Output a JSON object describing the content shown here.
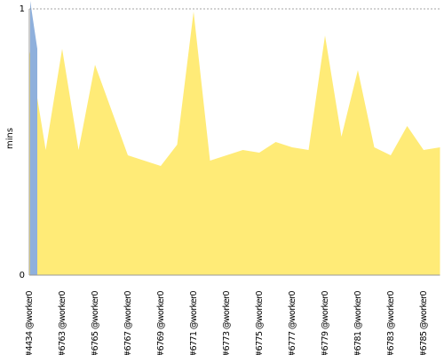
{
  "chart_data": {
    "type": "area",
    "y_label": "mins",
    "categories": [
      "#4434 @worker0",
      null,
      "#6763 @worker0",
      null,
      "#6765 @worker0",
      null,
      "#6767 @worker0",
      null,
      "#6769 @worker0",
      null,
      "#6771 @worker0",
      null,
      "#6773 @worker0",
      null,
      "#6775 @worker0",
      null,
      "#6777 @worker0",
      null,
      "#6779 @worker0",
      null,
      "#6781 @worker0",
      null,
      "#6783 @worker0",
      null,
      "#6785 @worker0",
      null
    ],
    "series": [
      {
        "color": "#ffeb77",
        "values": [
          0.85,
          0.47,
          0.85,
          0.47,
          0.79,
          0.62,
          0.45,
          0.43,
          0.41,
          0.49,
          0.99,
          0.43,
          0.45,
          0.47,
          0.46,
          0.5,
          0.48,
          0.47,
          0.9,
          0.52,
          0.77,
          0.48,
          0.45,
          0.56,
          0.47,
          0.48
        ]
      },
      {
        "color": "#8fb0dc",
        "values": [
          1.03,
          null,
          null,
          null,
          null,
          null,
          null,
          null,
          null,
          null,
          null,
          null,
          null,
          null,
          null,
          null,
          null,
          null,
          null,
          null,
          null,
          null,
          null,
          null,
          null,
          null
        ]
      }
    ],
    "ylim": [
      0,
      1
    ],
    "yticks": [
      0,
      1
    ],
    "grid": true
  }
}
